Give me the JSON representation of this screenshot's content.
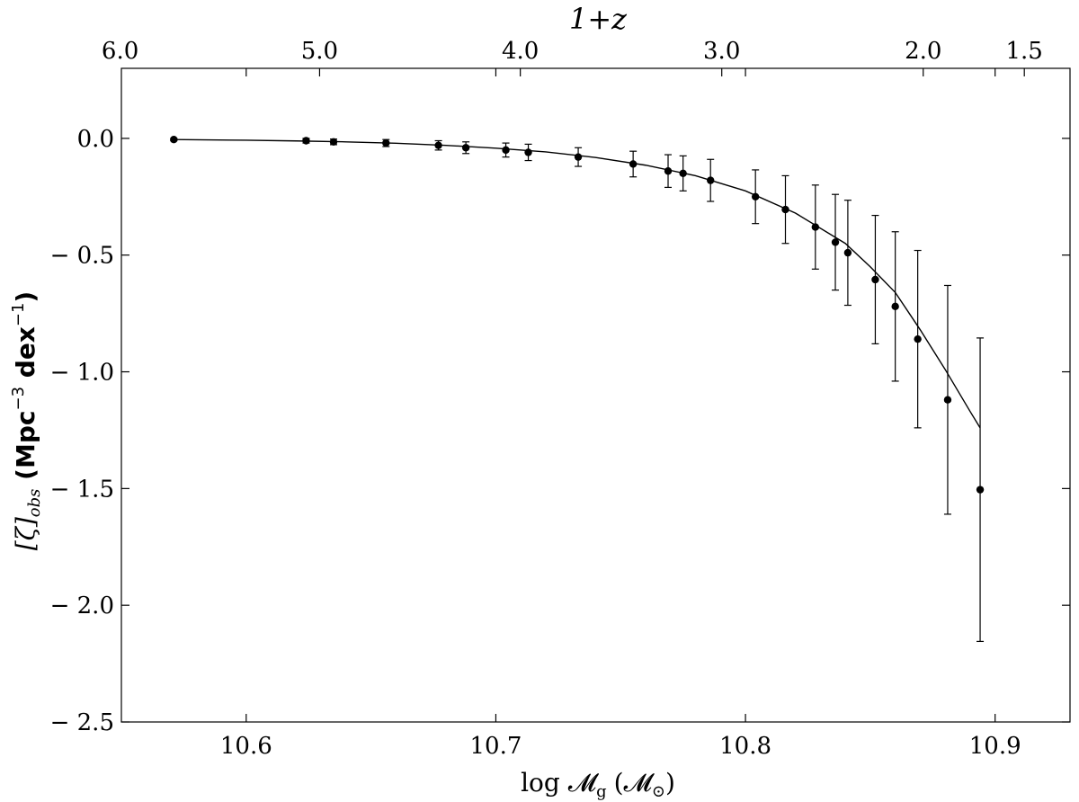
{
  "chart_data": {
    "type": "scatter",
    "title": "",
    "xlabel": "log 𝓜g (𝓜⊙)",
    "xlabel_main": "log 𝓜",
    "xlabel_sub": "g",
    "xlabel_paren": "(𝓜",
    "xlabel_paren_sub": "⊙",
    "xlabel_close": ")",
    "ylabel": "[ζ]obs (Mpc⁻³ dex⁻¹)",
    "ylabel_bracket": "[ζ]",
    "ylabel_sub": "obs",
    "ylabel_unit": " (Mpc",
    "ylabel_sup1": "−3",
    "ylabel_mid": " dex",
    "ylabel_sup2": "−1",
    "ylabel_close": ")",
    "top_xlabel": "1+z",
    "xlim": [
      10.55,
      10.93
    ],
    "ylim": [
      -2.5,
      0.3
    ],
    "x_ticks": [
      10.6,
      10.7,
      10.8,
      10.9
    ],
    "x_tick_labels": [
      "10.6",
      "10.7",
      "10.8",
      "10.9"
    ],
    "y_ticks": [
      0.0,
      -0.5,
      -1.0,
      -1.5,
      -2.0,
      -2.5
    ],
    "y_tick_labels": [
      "0.0",
      "− 0.5",
      "− 1.0",
      "− 1.5",
      "− 2.0",
      "− 2.5"
    ],
    "top_ticks": [
      {
        "label": "6.0",
        "x": 10.5495
      },
      {
        "label": "5.0",
        "x": 10.6294
      },
      {
        "label": "4.0",
        "x": 10.7098
      },
      {
        "label": "3.0",
        "x": 10.7905
      },
      {
        "label": "2.0",
        "x": 10.8712
      },
      {
        "label": "1.5",
        "x": 10.9117
      }
    ],
    "grid": false,
    "series": [
      {
        "type": "scatter",
        "x": [
          10.571,
          10.624,
          10.635,
          10.656,
          10.677,
          10.688,
          10.704,
          10.713,
          10.733,
          10.755,
          10.769,
          10.775,
          10.786,
          10.804,
          10.816,
          10.828,
          10.836,
          10.841,
          10.852,
          10.86,
          10.869,
          10.881,
          10.894
        ],
        "y": [
          -0.005,
          -0.01,
          -0.015,
          -0.02,
          -0.03,
          -0.04,
          -0.05,
          -0.06,
          -0.08,
          -0.11,
          -0.14,
          -0.15,
          -0.18,
          -0.25,
          -0.305,
          -0.38,
          -0.445,
          -0.49,
          -0.605,
          -0.72,
          -0.86,
          -1.12,
          -1.505
        ],
        "err": [
          0.005,
          0.01,
          0.012,
          0.015,
          0.02,
          0.025,
          0.03,
          0.035,
          0.04,
          0.055,
          0.07,
          0.075,
          0.09,
          0.115,
          0.145,
          0.18,
          0.205,
          0.225,
          0.275,
          0.32,
          0.38,
          0.49,
          0.65
        ]
      },
      {
        "type": "line",
        "x": [
          10.571,
          10.6,
          10.62,
          10.64,
          10.66,
          10.68,
          10.7,
          10.72,
          10.74,
          10.76,
          10.78,
          10.8,
          10.82,
          10.84,
          10.85,
          10.86,
          10.87,
          10.88,
          10.89,
          10.894
        ],
        "y": [
          -0.005,
          -0.008,
          -0.011,
          -0.015,
          -0.021,
          -0.03,
          -0.042,
          -0.058,
          -0.082,
          -0.115,
          -0.16,
          -0.225,
          -0.32,
          -0.45,
          -0.55,
          -0.66,
          -0.82,
          -0.99,
          -1.17,
          -1.24
        ]
      }
    ]
  }
}
